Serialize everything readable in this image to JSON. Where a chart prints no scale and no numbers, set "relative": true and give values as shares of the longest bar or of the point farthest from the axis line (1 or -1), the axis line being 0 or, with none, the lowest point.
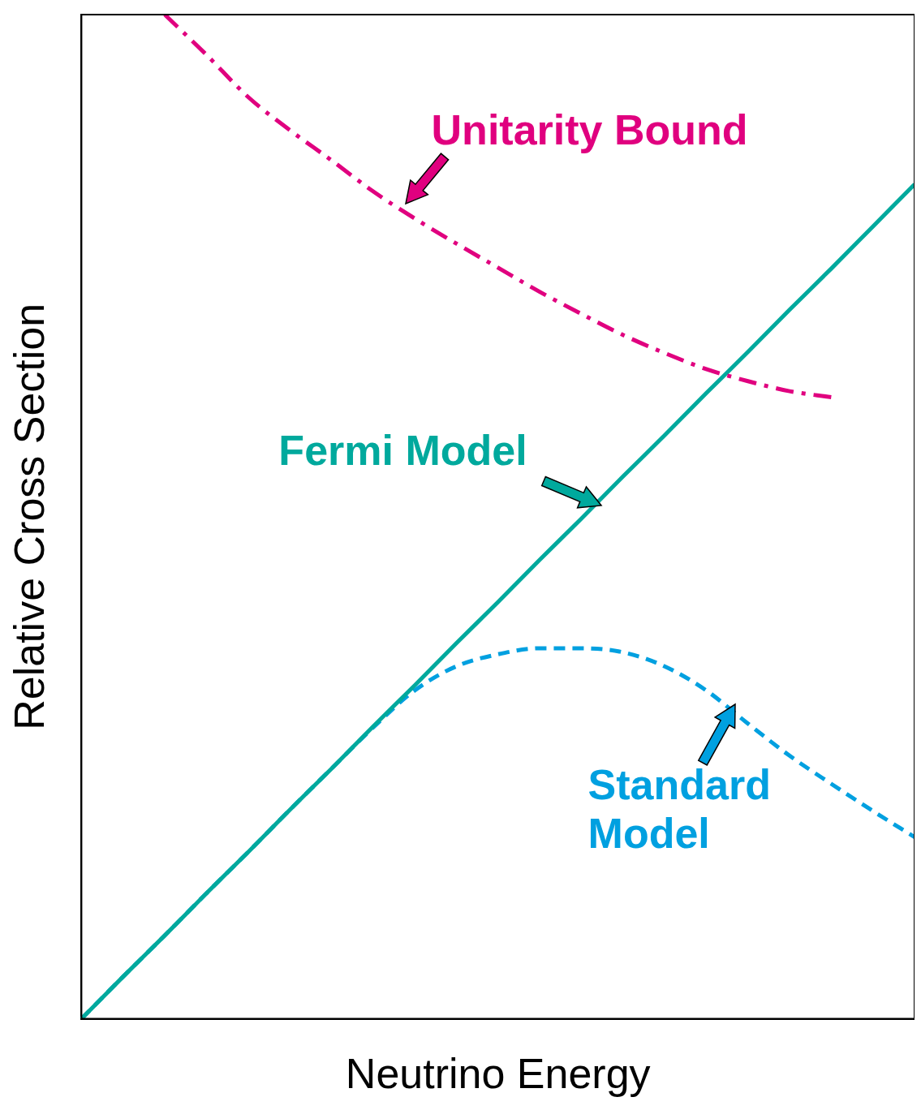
{
  "chart_data": {
    "type": "line",
    "relative": true,
    "xlabel": "Neutrino Energy",
    "ylabel": "Relative Cross Section",
    "grid": false,
    "tick_labels": false,
    "categories": [
      null,
      null,
      null,
      null,
      null,
      null,
      null,
      null,
      null,
      null,
      null,
      null,
      null,
      null,
      null,
      null,
      null,
      null,
      null,
      null,
      null
    ],
    "series": [
      {
        "name": "Unitarity Bound",
        "color": "#e0007f",
        "line_style": "dashdot",
        "values": [
          null,
          null,
          1.0,
          0.96,
          0.918,
          0.885,
          0.855,
          0.824,
          0.797,
          0.772,
          0.748,
          0.724,
          0.702,
          0.681,
          0.663,
          0.647,
          0.635,
          0.625,
          0.619,
          null,
          null
        ]
      },
      {
        "name": "Fermi Model",
        "color": "#00a99d",
        "line_style": "solid",
        "values": [
          0,
          0.042,
          0.083,
          0.125,
          0.166,
          0.208,
          0.249,
          0.291,
          0.332,
          0.374,
          0.415,
          0.457,
          0.498,
          0.54,
          0.581,
          0.623,
          0.664,
          0.706,
          0.747,
          0.789,
          0.831
        ]
      },
      {
        "name": "Standard Model",
        "color": "#00a0e0",
        "line_style": "dashed",
        "values": [
          0,
          0.042,
          0.083,
          0.125,
          0.166,
          0.208,
          0.249,
          0.29,
          0.327,
          0.351,
          0.363,
          0.369,
          0.369,
          0.365,
          0.351,
          0.327,
          0.294,
          0.262,
          0.234,
          0.207,
          0.181
        ]
      }
    ]
  }
}
